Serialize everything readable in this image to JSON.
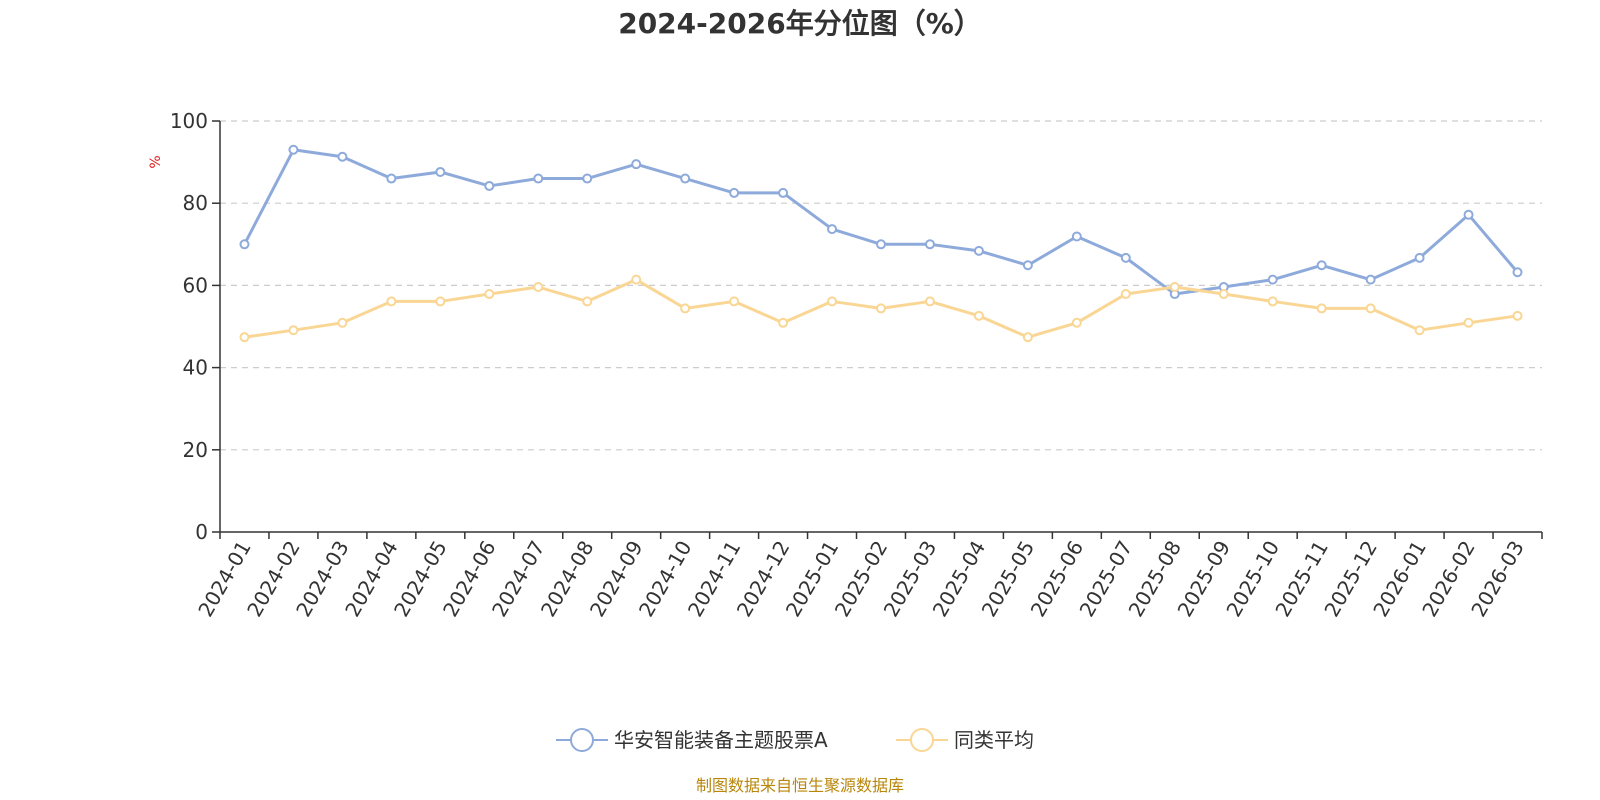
{
  "chart_data": {
    "type": "line",
    "title": "2024-2026年分位图（%）",
    "unit_label": "%",
    "categories": [
      "2024-01",
      "2024-02",
      "2024-03",
      "2024-04",
      "2024-05",
      "2024-06",
      "2024-07",
      "2024-08",
      "2024-09",
      "2024-10",
      "2024-11",
      "2024-12",
      "2025-01",
      "2025-02",
      "2025-03",
      "2025-04",
      "2025-05",
      "2025-06",
      "2025-07",
      "2025-08",
      "2025-09",
      "2025-10",
      "2025-11",
      "2025-12",
      "2026-01",
      "2026-02",
      "2026-03"
    ],
    "yticks": [
      "0",
      "20",
      "40",
      "60",
      "80",
      "100"
    ],
    "ylim": [
      0,
      100
    ],
    "grid": true,
    "legend_position": "bottom",
    "series": [
      {
        "name": "华安智能装备主题股票A",
        "color": "#8eaadb",
        "values": [
          70,
          93,
          91.3,
          86,
          87.6,
          84.2,
          86,
          86,
          89.5,
          86,
          82.5,
          82.5,
          73.7,
          70,
          70,
          68.4,
          64.9,
          71.9,
          66.7,
          57.9,
          59.6,
          61.4,
          64.9,
          61.4,
          66.7,
          77.2,
          63.2
        ]
      },
      {
        "name": "同类平均",
        "color": "#fad694",
        "values": [
          47.4,
          49.1,
          50.9,
          56.1,
          56.1,
          57.9,
          59.6,
          56.1,
          61.4,
          54.4,
          56.1,
          50.9,
          56.1,
          54.4,
          56.1,
          52.6,
          47.4,
          50.9,
          57.9,
          59.6,
          57.9,
          56.1,
          54.4,
          54.4,
          49.1,
          50.9,
          52.6
        ]
      }
    ]
  },
  "footer": {
    "source": "制图数据来自恒生聚源数据库"
  }
}
